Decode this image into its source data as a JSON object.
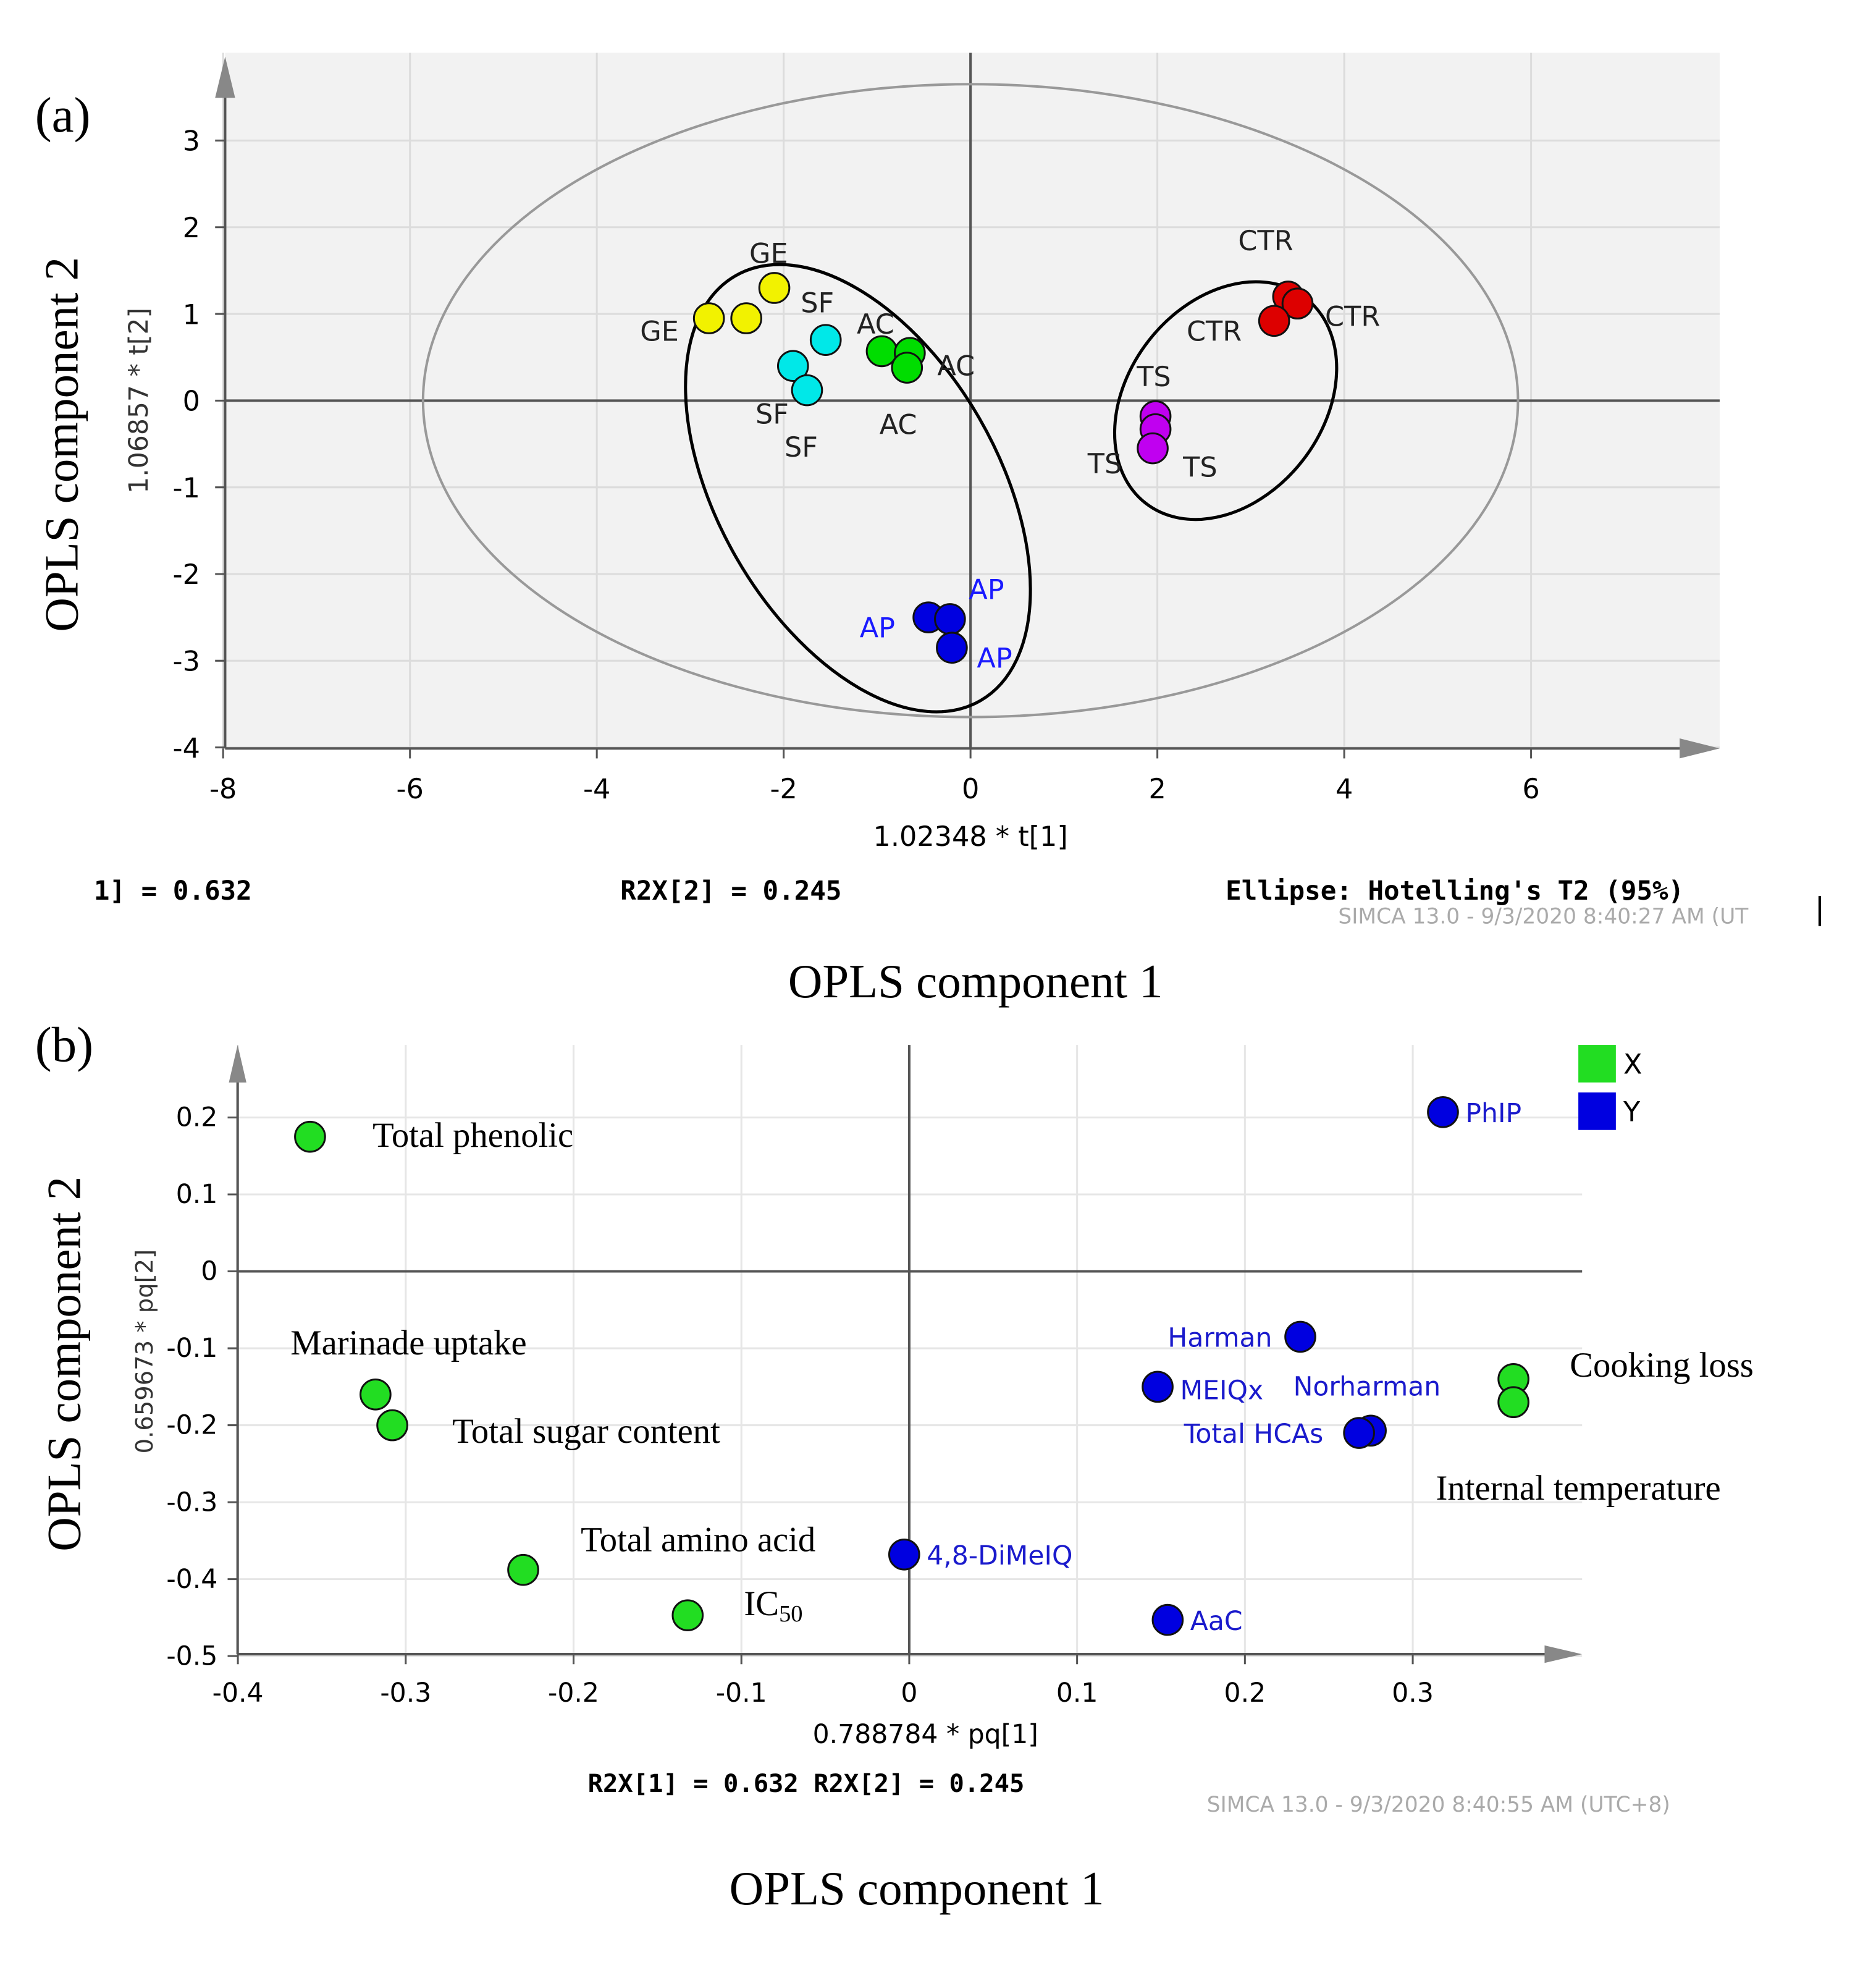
{
  "chart_data": [
    {
      "panel": "(a)",
      "type": "scatter",
      "outer_xlabel": "OPLS component 1",
      "outer_ylabel": "OPLS component 2",
      "xlabel": "1.02348 * t[1]",
      "ylabel": "1.06857 * t[2]",
      "xlim": [
        -8,
        7.5
      ],
      "ylim": [
        -4,
        3.8
      ],
      "xticks": [
        -8,
        -6,
        -4,
        -2,
        0,
        2,
        4,
        6
      ],
      "yticks": [
        -4,
        -3,
        -2,
        -1,
        0,
        1,
        2,
        3
      ],
      "footer": [
        "1] = 0.632",
        "R2X[2] = 0.245",
        "Ellipse: Hotelling's T2 (95%)"
      ],
      "watermark": "SIMCA 13.0 - 9/3/2020 8:40:27 AM (UT",
      "ellipse": {
        "center": [
          0,
          0
        ],
        "semi_axes": [
          5.86,
          3.65
        ]
      },
      "groups": [
        {
          "name": "GE",
          "color": "#f2f200",
          "points": [
            [
              -2.8,
              0.95
            ],
            [
              -2.4,
              0.95
            ],
            [
              -2.1,
              1.3
            ]
          ]
        },
        {
          "name": "SF",
          "color": "#00e8e8",
          "points": [
            [
              -1.55,
              0.7
            ],
            [
              -1.9,
              0.4
            ],
            [
              -1.75,
              0.12
            ]
          ]
        },
        {
          "name": "AC",
          "color": "#00dd00",
          "points": [
            [
              -0.95,
              0.57
            ],
            [
              -0.65,
              0.55
            ],
            [
              -0.68,
              0.38
            ]
          ]
        },
        {
          "name": "AP",
          "color": "#0000e0",
          "label_color": "#1a1aff",
          "points": [
            [
              -0.45,
              -2.5
            ],
            [
              -0.22,
              -2.52
            ],
            [
              -0.2,
              -2.85
            ]
          ]
        },
        {
          "name": "TS",
          "color": "#c000f0",
          "points": [
            [
              1.98,
              -0.18
            ],
            [
              1.98,
              -0.33
            ],
            [
              1.95,
              -0.55
            ]
          ]
        },
        {
          "name": "CTR",
          "color": "#dd0000",
          "points": [
            [
              3.4,
              1.2
            ],
            [
              3.5,
              1.12
            ],
            [
              3.25,
              0.92
            ]
          ]
        }
      ]
    },
    {
      "panel": "(b)",
      "type": "scatter",
      "outer_xlabel": "OPLS component 1",
      "outer_ylabel": "OPLS component 2",
      "xlabel": "0.788784 * pq[1]",
      "ylabel": "0.659673 * pq[2]",
      "xlim": [
        -0.4,
        0.4
      ],
      "ylim": [
        -0.5,
        0.28
      ],
      "xticks": [
        "-0.4",
        "-0.3",
        "-0.2",
        "-0.1",
        "0",
        "0.1",
        "0.2",
        "0.3"
      ],
      "yticks": [
        "-0.5",
        "-0.4",
        "-0.3",
        "-0.2",
        "-0.1",
        "0",
        "0.1",
        "0.2"
      ],
      "footer": "R2X[1] = 0.632 R2X[2] = 0.245",
      "watermark": "SIMCA 13.0 - 9/3/2020 8:40:55 AM (UTC+8)",
      "legend": [
        {
          "name": "X",
          "color": "#22dd22"
        },
        {
          "name": "Y",
          "color": "#0000e0"
        }
      ],
      "series": [
        {
          "name": "X",
          "color": "#22dd22",
          "points": [
            {
              "label": "Total phenolic",
              "x": -0.357,
              "y": 0.175
            },
            {
              "label": "Marinade uptake",
              "x": -0.318,
              "y": -0.16
            },
            {
              "label": "Total sugar content",
              "x": -0.308,
              "y": -0.2
            },
            {
              "label": "Total amino acid",
              "x": -0.23,
              "y": -0.388
            },
            {
              "label": "IC50",
              "x": -0.132,
              "y": -0.447
            },
            {
              "label": "Cooking loss",
              "x": 0.36,
              "y": -0.14
            },
            {
              "label": "Internal temperature",
              "x": 0.36,
              "y": -0.17
            }
          ]
        },
        {
          "name": "Y",
          "color": "#0000e0",
          "points": [
            {
              "label": "PhIP",
              "x": 0.318,
              "y": 0.207
            },
            {
              "label": "Harman",
              "x": 0.233,
              "y": -0.085
            },
            {
              "label": "MEIQx",
              "x": 0.148,
              "y": -0.15
            },
            {
              "label": "Norharman",
              "x": 0.275,
              "y": -0.207
            },
            {
              "label": "Total HCAs",
              "x": 0.268,
              "y": -0.21
            },
            {
              "label": "4,8-DiMeIQ",
              "x": -0.003,
              "y": -0.368
            },
            {
              "label": "AaC",
              "x": 0.154,
              "y": -0.453
            }
          ]
        }
      ]
    }
  ]
}
